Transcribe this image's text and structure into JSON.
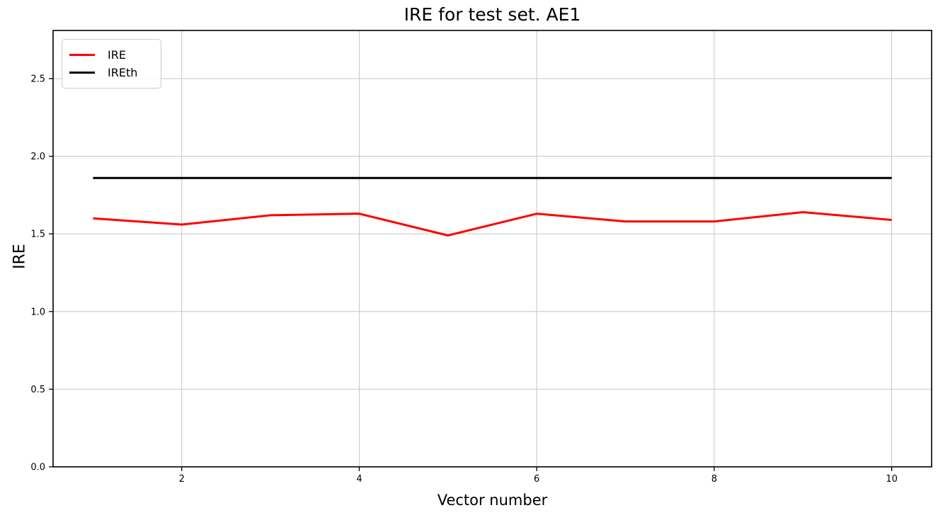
{
  "figure": {
    "background": "#ffffff"
  },
  "chart_data": {
    "type": "line",
    "title": "IRE for test set. AE1",
    "xlabel": "Vector number",
    "ylabel": "IRE",
    "x": [
      1,
      2,
      3,
      4,
      5,
      6,
      7,
      8,
      9,
      10
    ],
    "series": [
      {
        "name": "IRE",
        "color": "#ff0000",
        "linewidth": 3,
        "values": [
          1.6,
          1.56,
          1.62,
          1.63,
          1.49,
          1.63,
          1.58,
          1.58,
          1.64,
          1.59
        ]
      },
      {
        "name": "IREth",
        "color": "#000000",
        "linewidth": 3,
        "values": [
          1.86,
          1.86,
          1.86,
          1.86,
          1.86,
          1.86,
          1.86,
          1.86,
          1.86,
          1.86
        ]
      }
    ],
    "xticks": [
      2,
      4,
      6,
      8,
      10
    ],
    "yticks": [
      0.0,
      0.5,
      1.0,
      1.5,
      2.0,
      2.5
    ],
    "xlim": [
      0.55,
      10.45
    ],
    "ylim": [
      0,
      2.81
    ],
    "grid": true,
    "grid_color": "#c6c6c6",
    "spine_color": "#000000",
    "legend_position": "upper left"
  }
}
